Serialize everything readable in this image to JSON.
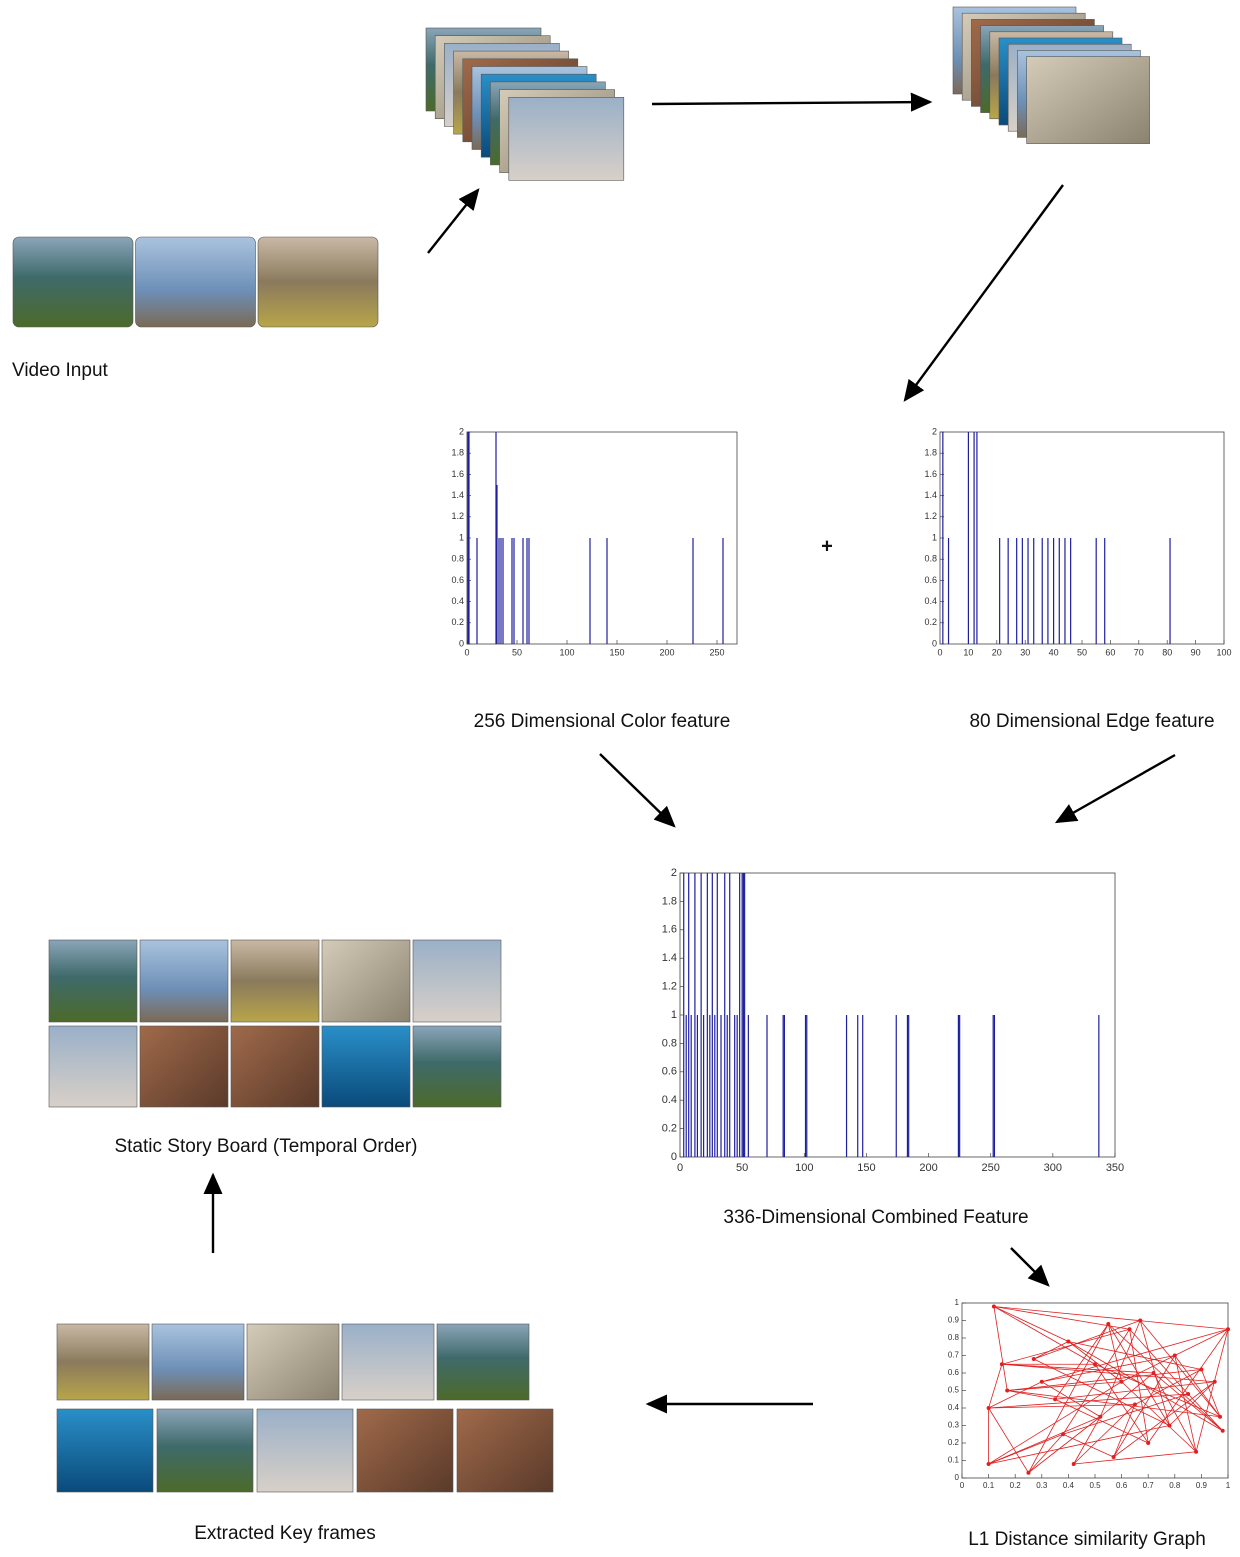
{
  "labels": {
    "video_input": "Video Input",
    "plus": "+",
    "story_board": "Static Story Board (Temporal Order)",
    "key_frames": "Extracted Key frames"
  },
  "chart_data": [
    {
      "type": "bar",
      "title": "256 Dimensional Color feature",
      "color": "#1f1f9e",
      "x": [
        1,
        2,
        10,
        29,
        30,
        32,
        34,
        36,
        45,
        47,
        56,
        60,
        62,
        123,
        140,
        226,
        256
      ],
      "values": [
        2,
        2,
        1,
        2,
        1.5,
        1,
        1,
        1,
        1,
        1,
        1,
        1,
        1,
        1,
        1,
        1,
        1
      ],
      "xlim": [
        0,
        270
      ],
      "ylim": [
        0,
        2
      ],
      "xticks": [
        0,
        50,
        100,
        150,
        200,
        250
      ],
      "yticks": [
        0,
        0.2,
        0.4,
        0.6,
        0.8,
        1,
        1.2,
        1.4,
        1.6,
        1.8,
        2
      ]
    },
    {
      "type": "bar",
      "title": "80 Dimensional Edge feature",
      "color": "#1f1f9e",
      "x": [
        1,
        3,
        10,
        12,
        13,
        21,
        24,
        27,
        29,
        31,
        33,
        36,
        38,
        40,
        42,
        44,
        46,
        55,
        58,
        81
      ],
      "values": [
        2,
        1,
        2,
        2,
        2,
        1,
        1,
        1,
        1,
        1,
        1,
        1,
        1,
        1,
        1,
        1,
        1,
        1,
        1,
        1
      ],
      "xlim": [
        0,
        100
      ],
      "ylim": [
        0,
        2
      ],
      "xticks": [
        0,
        10,
        20,
        30,
        40,
        50,
        60,
        70,
        80,
        90,
        100
      ],
      "yticks": [
        0,
        0.2,
        0.4,
        0.6,
        0.8,
        1,
        1.2,
        1.4,
        1.6,
        1.8,
        2
      ]
    },
    {
      "type": "bar",
      "title": "336-Dimensional Combined Feature",
      "color": "#1f1f9e",
      "x": [
        3,
        5,
        7,
        9,
        12,
        14,
        17,
        19,
        22,
        24,
        26,
        28,
        30,
        33,
        36,
        38,
        40,
        44,
        46,
        48,
        50,
        51,
        52,
        55,
        70,
        83,
        84,
        101,
        102,
        134,
        143,
        147,
        174,
        183,
        184,
        224,
        225,
        252,
        253,
        337
      ],
      "values": [
        2,
        1,
        2,
        1,
        2,
        1,
        2,
        1,
        2,
        1,
        2,
        1,
        2,
        1,
        2,
        1,
        2,
        1,
        1,
        2,
        2,
        2,
        2,
        1,
        1,
        1,
        1,
        1,
        1,
        1,
        1,
        1,
        1,
        1,
        1,
        1,
        1,
        1,
        1,
        1
      ],
      "xlim": [
        0,
        350
      ],
      "ylim": [
        0,
        2
      ],
      "xticks": [
        0,
        50,
        100,
        150,
        200,
        250,
        300,
        350
      ],
      "yticks": [
        0,
        0.2,
        0.4,
        0.6,
        0.8,
        1,
        1.2,
        1.4,
        1.6,
        1.8,
        2
      ]
    },
    {
      "type": "network",
      "title": "L1 Distance similarity Graph",
      "color": "#e02020",
      "x": [
        0.1,
        0.12,
        0.1,
        0.15,
        0.17,
        0.25,
        0.27,
        0.3,
        0.35,
        0.38,
        0.4,
        0.42,
        0.5,
        0.52,
        0.55,
        0.57,
        0.6,
        0.63,
        0.65,
        0.67,
        0.7,
        0.72,
        0.78,
        0.8,
        0.85,
        0.88,
        0.9,
        0.95,
        0.97,
        1,
        0.98
      ],
      "y": [
        0.08,
        0.98,
        0.4,
        0.65,
        0.5,
        0.03,
        0.68,
        0.55,
        0.45,
        0.25,
        0.78,
        0.08,
        0.65,
        0.35,
        0.88,
        0.12,
        0.55,
        0.85,
        0.42,
        0.9,
        0.2,
        0.6,
        0.3,
        0.7,
        0.48,
        0.15,
        0.62,
        0.55,
        0.35,
        0.85,
        0.27
      ],
      "edges": [
        [
          0,
          2
        ],
        [
          0,
          9
        ],
        [
          0,
          13
        ],
        [
          0,
          16
        ],
        [
          1,
          10
        ],
        [
          1,
          12
        ],
        [
          1,
          29
        ],
        [
          1,
          4
        ],
        [
          1,
          17
        ],
        [
          2,
          3
        ],
        [
          2,
          7
        ],
        [
          2,
          18
        ],
        [
          2,
          24
        ],
        [
          2,
          5
        ],
        [
          3,
          12
        ],
        [
          3,
          21
        ],
        [
          3,
          27
        ],
        [
          4,
          8
        ],
        [
          4,
          16
        ],
        [
          4,
          26
        ],
        [
          4,
          28
        ],
        [
          5,
          9
        ],
        [
          5,
          14
        ],
        [
          5,
          13
        ],
        [
          6,
          10
        ],
        [
          6,
          19
        ],
        [
          6,
          22
        ],
        [
          7,
          13
        ],
        [
          7,
          23
        ],
        [
          7,
          29
        ],
        [
          8,
          14
        ],
        [
          8,
          20
        ],
        [
          8,
          27
        ],
        [
          9,
          15
        ],
        [
          9,
          24
        ],
        [
          9,
          17
        ],
        [
          10,
          16
        ],
        [
          10,
          26
        ],
        [
          10,
          30
        ],
        [
          11,
          13
        ],
        [
          11,
          18
        ],
        [
          11,
          25
        ],
        [
          12,
          20
        ],
        [
          12,
          28
        ],
        [
          13,
          21
        ],
        [
          13,
          19
        ],
        [
          14,
          22
        ],
        [
          14,
          30
        ],
        [
          15,
          18
        ],
        [
          15,
          23
        ],
        [
          15,
          27
        ],
        [
          16,
          25
        ],
        [
          16,
          29
        ],
        [
          17,
          20
        ],
        [
          17,
          24
        ],
        [
          18,
          26
        ],
        [
          19,
          22
        ],
        [
          19,
          28
        ],
        [
          20,
          29
        ],
        [
          21,
          25
        ],
        [
          21,
          30
        ],
        [
          22,
          27
        ],
        [
          23,
          28
        ],
        [
          23,
          25
        ],
        [
          24,
          30
        ],
        [
          25,
          29
        ],
        [
          26,
          28
        ],
        [
          14,
          16
        ],
        [
          3,
          17
        ],
        [
          0,
          22
        ]
      ],
      "xlim": [
        0,
        1
      ],
      "ylim": [
        0,
        1
      ],
      "xticks": [
        0,
        0.1,
        0.2,
        0.3,
        0.4,
        0.5,
        0.6,
        0.7,
        0.8,
        0.9,
        1
      ],
      "yticks": [
        0,
        0.1,
        0.2,
        0.3,
        0.4,
        0.5,
        0.6,
        0.7,
        0.8,
        0.9,
        1
      ]
    }
  ]
}
